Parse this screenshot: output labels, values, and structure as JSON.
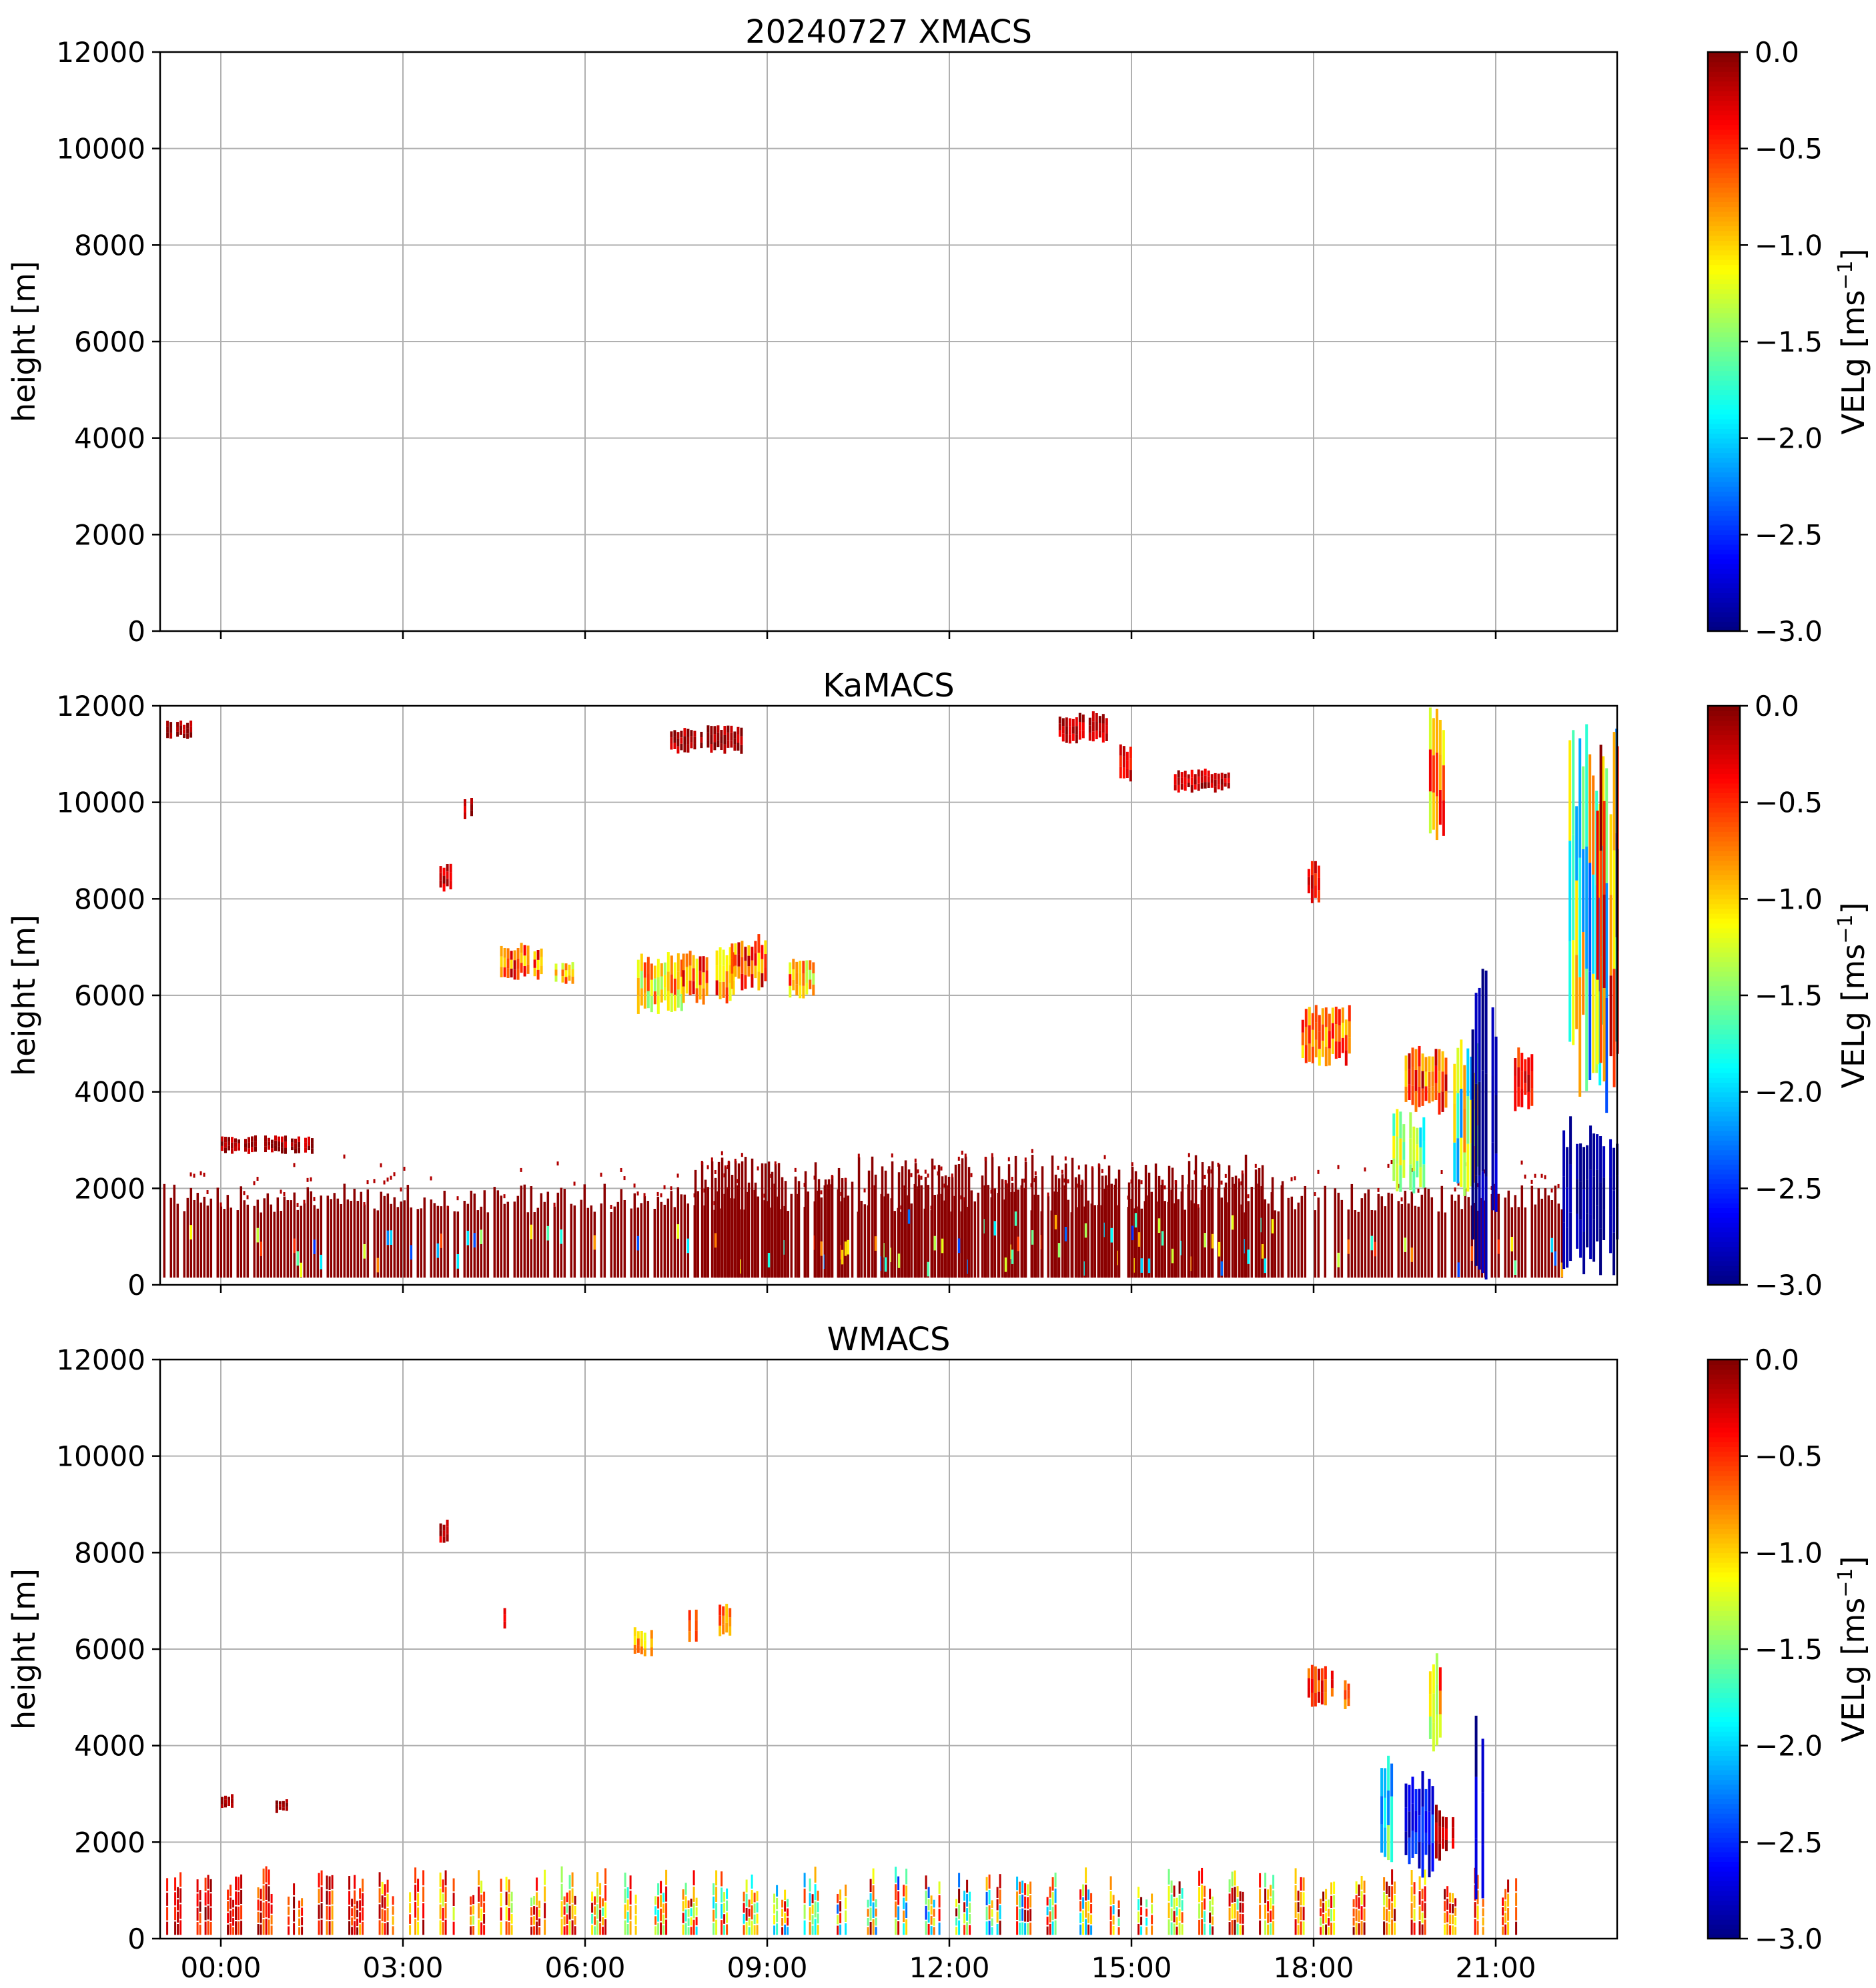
{
  "chart_data": [
    {
      "type": "heatmap",
      "title": "20240727 XMACS",
      "xlabel": "",
      "ylabel": "height [m]",
      "ylim": [
        0,
        12000
      ],
      "xlim_hours": [
        -1.0,
        23.0
      ],
      "yticks": [
        "0",
        "2000",
        "4000",
        "6000",
        "8000",
        "10000",
        "12000"
      ],
      "xticks_hours": [
        0,
        3,
        6,
        9,
        12,
        15,
        18,
        21
      ],
      "xticklabels": [],
      "grid": true,
      "colorbar": {
        "label_main": "VELg [ms",
        "label_sup": "−1",
        "label_close": "]",
        "vmin": -3.0,
        "vmax": 0.0,
        "ticks": [
          "−3.0",
          "−2.5",
          "−2.0",
          "−1.5",
          "−1.0",
          "−0.5",
          "0.0"
        ],
        "colormap": "jet"
      },
      "features": []
    },
    {
      "type": "heatmap",
      "title": "KaMACS",
      "xlabel": "",
      "ylabel": "height [m]",
      "ylim": [
        0,
        12000
      ],
      "xlim_hours": [
        -1.0,
        23.0
      ],
      "yticks": [
        "0",
        "2000",
        "4000",
        "6000",
        "8000",
        "10000",
        "12000"
      ],
      "xticks_hours": [
        0,
        3,
        6,
        9,
        12,
        15,
        18,
        21
      ],
      "xticklabels": [],
      "grid": true,
      "colorbar": {
        "label_main": "VELg [ms",
        "label_sup": "−1",
        "label_close": "]",
        "vmin": -3.0,
        "vmax": 0.0,
        "ticks": [
          "−3.0",
          "−2.5",
          "−2.0",
          "−1.5",
          "−1.0",
          "−0.5",
          "0.0"
        ],
        "colormap": "jet"
      },
      "features": [
        {
          "kind": "boundary_layer",
          "t0": -0.95,
          "t1": 22.1,
          "h0": 150,
          "h1": 2100,
          "top_noise": 700,
          "density": 0.85
        },
        {
          "kind": "boundary_layer",
          "t0": 7.8,
          "t1": 17.5,
          "h0": 150,
          "h1": 2700,
          "top_noise": 200,
          "density": 0.7
        },
        {
          "kind": "cloud",
          "t0": 4.6,
          "t1": 5.3,
          "h0": 6300,
          "h1": 7100,
          "v": -0.6,
          "dv": 0.5
        },
        {
          "kind": "cloud",
          "t0": 5.5,
          "t1": 5.8,
          "h0": 6200,
          "h1": 6700,
          "v": -0.9,
          "dv": 0.4
        },
        {
          "kind": "cloud",
          "t0": 6.8,
          "t1": 7.6,
          "h0": 5600,
          "h1": 6900,
          "v": -1.0,
          "dv": 0.5
        },
        {
          "kind": "cloud",
          "t0": 7.6,
          "t1": 8.5,
          "h0": 5800,
          "h1": 7000,
          "v": -0.7,
          "dv": 0.5
        },
        {
          "kind": "cloud",
          "t0": 8.4,
          "t1": 9.0,
          "h0": 6100,
          "h1": 7300,
          "v": -0.6,
          "dv": 0.5
        },
        {
          "kind": "cloud",
          "t0": 9.3,
          "t1": 9.8,
          "h0": 5900,
          "h1": 6900,
          "v": -0.9,
          "dv": 0.5
        },
        {
          "kind": "cloud",
          "t0": 7.4,
          "t1": 8.6,
          "h0": 11000,
          "h1": 11600,
          "v": -0.1,
          "dv": 0.2
        },
        {
          "kind": "cloud",
          "t0": 3.6,
          "t1": 3.8,
          "h0": 8100,
          "h1": 8800,
          "v": -0.2,
          "dv": 0.2
        },
        {
          "kind": "cloud",
          "t0": 4.0,
          "t1": 4.2,
          "h0": 9600,
          "h1": 10200,
          "v": -0.2,
          "dv": 0.2
        },
        {
          "kind": "cloud",
          "t0": -0.9,
          "t1": -0.5,
          "h0": 11300,
          "h1": 11700,
          "v": -0.1,
          "dv": 0.2
        },
        {
          "kind": "cloud",
          "t0": 0.0,
          "t1": 1.5,
          "h0": 2700,
          "h1": 3100,
          "v": -0.1,
          "dv": 0.2
        },
        {
          "kind": "cloud",
          "t0": 13.8,
          "t1": 14.6,
          "h0": 11200,
          "h1": 11900,
          "v": -0.2,
          "dv": 0.2
        },
        {
          "kind": "cloud",
          "t0": 14.8,
          "t1": 15.0,
          "h0": 10400,
          "h1": 11200,
          "v": -0.3,
          "dv": 0.2
        },
        {
          "kind": "cloud",
          "t0": 15.7,
          "t1": 16.6,
          "h0": 10200,
          "h1": 10700,
          "v": -0.2,
          "dv": 0.2
        },
        {
          "kind": "cloud",
          "t0": 17.8,
          "t1": 18.6,
          "h0": 4500,
          "h1": 5800,
          "v": -0.7,
          "dv": 0.4
        },
        {
          "kind": "cloud",
          "t0": 17.9,
          "t1": 18.1,
          "h0": 7900,
          "h1": 8800,
          "v": -0.4,
          "dv": 0.3
        },
        {
          "kind": "cloud",
          "t0": 19.5,
          "t1": 20.2,
          "h0": 3500,
          "h1": 5000,
          "v": -0.6,
          "dv": 0.5
        },
        {
          "kind": "cloud",
          "t0": 19.9,
          "t1": 20.2,
          "h0": 9200,
          "h1": 12000,
          "v": -0.8,
          "dv": 0.5
        },
        {
          "kind": "cloud",
          "t0": 19.3,
          "t1": 19.8,
          "h0": 1800,
          "h1": 3700,
          "v": -1.5,
          "dv": 0.5
        },
        {
          "kind": "cloud",
          "t0": 20.3,
          "t1": 20.7,
          "h0": 1800,
          "h1": 5200,
          "v": -1.5,
          "dv": 0.8
        },
        {
          "kind": "cloud",
          "t0": 20.6,
          "t1": 21.0,
          "h0": 100,
          "h1": 6800,
          "v": -2.9,
          "dv": 0.2
        },
        {
          "kind": "cloud",
          "t0": 21.3,
          "t1": 21.6,
          "h0": 3600,
          "h1": 5000,
          "v": -0.4,
          "dv": 0.3
        },
        {
          "kind": "cloud",
          "t0": 22.2,
          "t1": 23.0,
          "h0": 3500,
          "h1": 12000,
          "v": -1.6,
          "dv": 0.9
        },
        {
          "kind": "cloud",
          "t0": 22.6,
          "t1": 23.0,
          "h0": 3500,
          "h1": 11500,
          "v": -0.6,
          "dv": 0.6
        },
        {
          "kind": "cloud",
          "t0": 22.1,
          "t1": 23.0,
          "h0": 150,
          "h1": 3500,
          "v": -2.9,
          "dv": 0.1
        }
      ]
    },
    {
      "type": "heatmap",
      "title": "WMACS",
      "xlabel": "",
      "ylabel": "height [m]",
      "ylim": [
        0,
        12000
      ],
      "xlim_hours": [
        -1.0,
        23.0
      ],
      "yticks": [
        "0",
        "2000",
        "4000",
        "6000",
        "8000",
        "10000",
        "12000"
      ],
      "xticks_hours": [
        0,
        3,
        6,
        9,
        12,
        15,
        18,
        21
      ],
      "xticklabels": [
        "00:00",
        "03:00",
        "06:00",
        "09:00",
        "12:00",
        "15:00",
        "18:00",
        "21:00"
      ],
      "grid": true,
      "colorbar": {
        "label_main": "VELg [ms",
        "label_sup": "−1",
        "label_close": "]",
        "vmin": -3.0,
        "vmax": 0.0,
        "ticks": [
          "−3.0",
          "−2.5",
          "−2.0",
          "−1.5",
          "−1.0",
          "−0.5",
          "0.0"
        ],
        "colormap": "jet"
      },
      "features": [
        {
          "kind": "scans",
          "t0": -0.9,
          "t1": 21.2,
          "period": 0.5,
          "width": 0.25,
          "h0": 50,
          "h1": 1500
        },
        {
          "kind": "cloud",
          "t0": 3.6,
          "t1": 3.8,
          "h0": 8200,
          "h1": 8700,
          "v": -0.2,
          "dv": 0.2
        },
        {
          "kind": "cloud",
          "t0": 4.6,
          "t1": 4.7,
          "h0": 6300,
          "h1": 7000,
          "v": -0.3,
          "dv": 0.2
        },
        {
          "kind": "cloud",
          "t0": 6.8,
          "t1": 7.1,
          "h0": 5800,
          "h1": 6500,
          "v": -0.9,
          "dv": 0.3
        },
        {
          "kind": "cloud",
          "t0": 7.7,
          "t1": 7.9,
          "h0": 6100,
          "h1": 7000,
          "v": -0.7,
          "dv": 0.3
        },
        {
          "kind": "cloud",
          "t0": 8.2,
          "t1": 8.4,
          "h0": 6200,
          "h1": 7000,
          "v": -0.7,
          "dv": 0.3
        },
        {
          "kind": "cloud",
          "t0": 17.9,
          "t1": 18.3,
          "h0": 4800,
          "h1": 5700,
          "v": -0.5,
          "dv": 0.3
        },
        {
          "kind": "cloud",
          "t0": 18.5,
          "t1": 18.6,
          "h0": 4700,
          "h1": 5400,
          "v": -0.7,
          "dv": 0.2
        },
        {
          "kind": "cloud",
          "t0": 19.1,
          "t1": 19.3,
          "h0": 1500,
          "h1": 3800,
          "v": -1.8,
          "dv": 0.5
        },
        {
          "kind": "cloud",
          "t0": 19.5,
          "t1": 20.0,
          "h0": 1200,
          "h1": 3600,
          "v": -2.6,
          "dv": 0.3
        },
        {
          "kind": "cloud",
          "t0": 19.9,
          "t1": 20.1,
          "h0": 3600,
          "h1": 6000,
          "v": -0.9,
          "dv": 0.6
        },
        {
          "kind": "cloud",
          "t0": 20.0,
          "t1": 20.3,
          "h0": 1600,
          "h1": 2800,
          "v": -0.2,
          "dv": 0.2
        },
        {
          "kind": "cloud",
          "t0": 20.6,
          "t1": 20.8,
          "h0": 100,
          "h1": 5000,
          "v": -2.9,
          "dv": 0.2
        },
        {
          "kind": "cloud",
          "t0": 0.0,
          "t1": 0.2,
          "h0": 2700,
          "h1": 3000,
          "v": -0.1,
          "dv": 0.1
        },
        {
          "kind": "cloud",
          "t0": 0.9,
          "t1": 1.1,
          "h0": 2600,
          "h1": 2900,
          "v": -0.1,
          "dv": 0.1
        }
      ]
    }
  ]
}
